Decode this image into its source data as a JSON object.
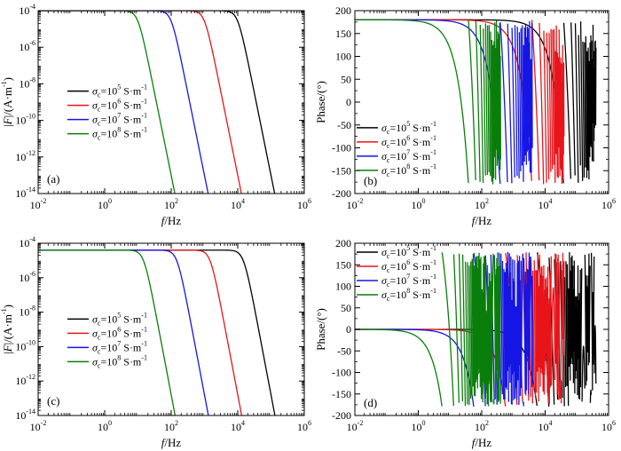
{
  "chart_data": [
    {
      "type": "line",
      "panel_label": "(a)",
      "xlabel_italic": "f",
      "xlabel_rest": "/Hz",
      "ylabel_italic": "F",
      "ylabel_rest": "/(A·m",
      "xscale": "log",
      "yscale": "log",
      "xlim": [
        0.01,
        1000000
      ],
      "ylim": [
        1e-14,
        0.0001
      ],
      "x_tick_exponents": [
        -2,
        0,
        2,
        4,
        6
      ],
      "y_tick_exponents": [
        -14,
        -12,
        -10,
        -8,
        -6,
        -4
      ],
      "legend_position": "center-right",
      "series": [
        {
          "sigma_exp": "5",
          "color": "#000000",
          "plateau": 0.0001,
          "corner_hz": 10000,
          "zero_hz": 150000
        },
        {
          "sigma_exp": "6",
          "color": "#e8141a",
          "plateau": 0.0001,
          "corner_hz": 1000,
          "zero_hz": 15000
        },
        {
          "sigma_exp": "7",
          "color": "#1515e6",
          "plateau": 0.0001,
          "corner_hz": 100,
          "zero_hz": 1500
        },
        {
          "sigma_exp": "8",
          "color": "#0a7e0a",
          "plateau": 0.0001,
          "corner_hz": 10,
          "zero_hz": 150
        }
      ]
    },
    {
      "type": "line",
      "panel_label": "(b)",
      "xlabel_italic": "f",
      "xlabel_rest": "/Hz",
      "ylabel": "Phase/(°)",
      "xscale": "log",
      "xlim": [
        0.01,
        1000000
      ],
      "ylim": [
        -200,
        200
      ],
      "x_tick_exponents": [
        -2,
        0,
        2,
        4,
        6
      ],
      "y_ticks": [
        -200,
        -150,
        -100,
        -50,
        0,
        50,
        100,
        150,
        200
      ],
      "legend_position": "lower-left",
      "series": [
        {
          "sigma_exp": "5",
          "color": "#000000",
          "start_deg": 180,
          "corner_hz": 10000,
          "end_hz": 400000
        },
        {
          "sigma_exp": "6",
          "color": "#e8141a",
          "start_deg": 180,
          "corner_hz": 1000,
          "end_hz": 40000
        },
        {
          "sigma_exp": "7",
          "color": "#1515e6",
          "start_deg": 180,
          "corner_hz": 100,
          "end_hz": 4000
        },
        {
          "sigma_exp": "8",
          "color": "#0a7e0a",
          "start_deg": 180,
          "corner_hz": 10,
          "end_hz": 400
        }
      ]
    },
    {
      "type": "line",
      "panel_label": "(c)",
      "xlabel_italic": "f",
      "xlabel_rest": "/Hz",
      "ylabel_italic": "F",
      "ylabel_rest": "/(A·m",
      "xscale": "log",
      "yscale": "log",
      "xlim": [
        0.01,
        1000000
      ],
      "ylim": [
        1e-14,
        0.0001
      ],
      "x_tick_exponents": [
        -2,
        0,
        2,
        4,
        6
      ],
      "y_tick_exponents": [
        -14,
        -12,
        -10,
        -8,
        -6,
        -4
      ],
      "legend_position": "center-right",
      "series": [
        {
          "sigma_exp": "5",
          "color": "#000000",
          "plateau": 4e-05,
          "corner_hz": 15000,
          "zero_hz": 150000
        },
        {
          "sigma_exp": "6",
          "color": "#e8141a",
          "plateau": 4e-05,
          "corner_hz": 1500,
          "zero_hz": 15000
        },
        {
          "sigma_exp": "7",
          "color": "#1515e6",
          "plateau": 4e-05,
          "corner_hz": 150,
          "zero_hz": 1500
        },
        {
          "sigma_exp": "8",
          "color": "#0a7e0a",
          "plateau": 4e-05,
          "corner_hz": 15,
          "zero_hz": 150
        }
      ]
    },
    {
      "type": "line",
      "panel_label": "(d)",
      "xlabel_italic": "f",
      "xlabel_rest": "/Hz",
      "ylabel": "Phase/(°)",
      "xscale": "log",
      "xlim": [
        0.01,
        1000000
      ],
      "ylim": [
        -200,
        200
      ],
      "x_tick_exponents": [
        -2,
        0,
        2,
        4,
        6
      ],
      "y_ticks": [
        -200,
        -150,
        -100,
        -50,
        0,
        50,
        100,
        150,
        200
      ],
      "legend_position": "top-left",
      "series": [
        {
          "sigma_exp": "5",
          "color": "#000000",
          "start_deg": 0,
          "corner_hz": 2500,
          "end_hz": 400000
        },
        {
          "sigma_exp": "6",
          "color": "#e8141a",
          "start_deg": 0,
          "corner_hz": 250,
          "end_hz": 40000
        },
        {
          "sigma_exp": "7",
          "color": "#1515e6",
          "start_deg": 0,
          "corner_hz": 25,
          "end_hz": 4000
        },
        {
          "sigma_exp": "8",
          "color": "#0a7e0a",
          "start_deg": 0,
          "corner_hz": 2.5,
          "end_hz": 400
        }
      ]
    }
  ],
  "legend_text": {
    "sigma": "σ",
    "subscript": "c",
    "base": "=10",
    "unit": " S·m",
    "unit_exp": "-1"
  },
  "ylabel_unit_exp": "-1"
}
